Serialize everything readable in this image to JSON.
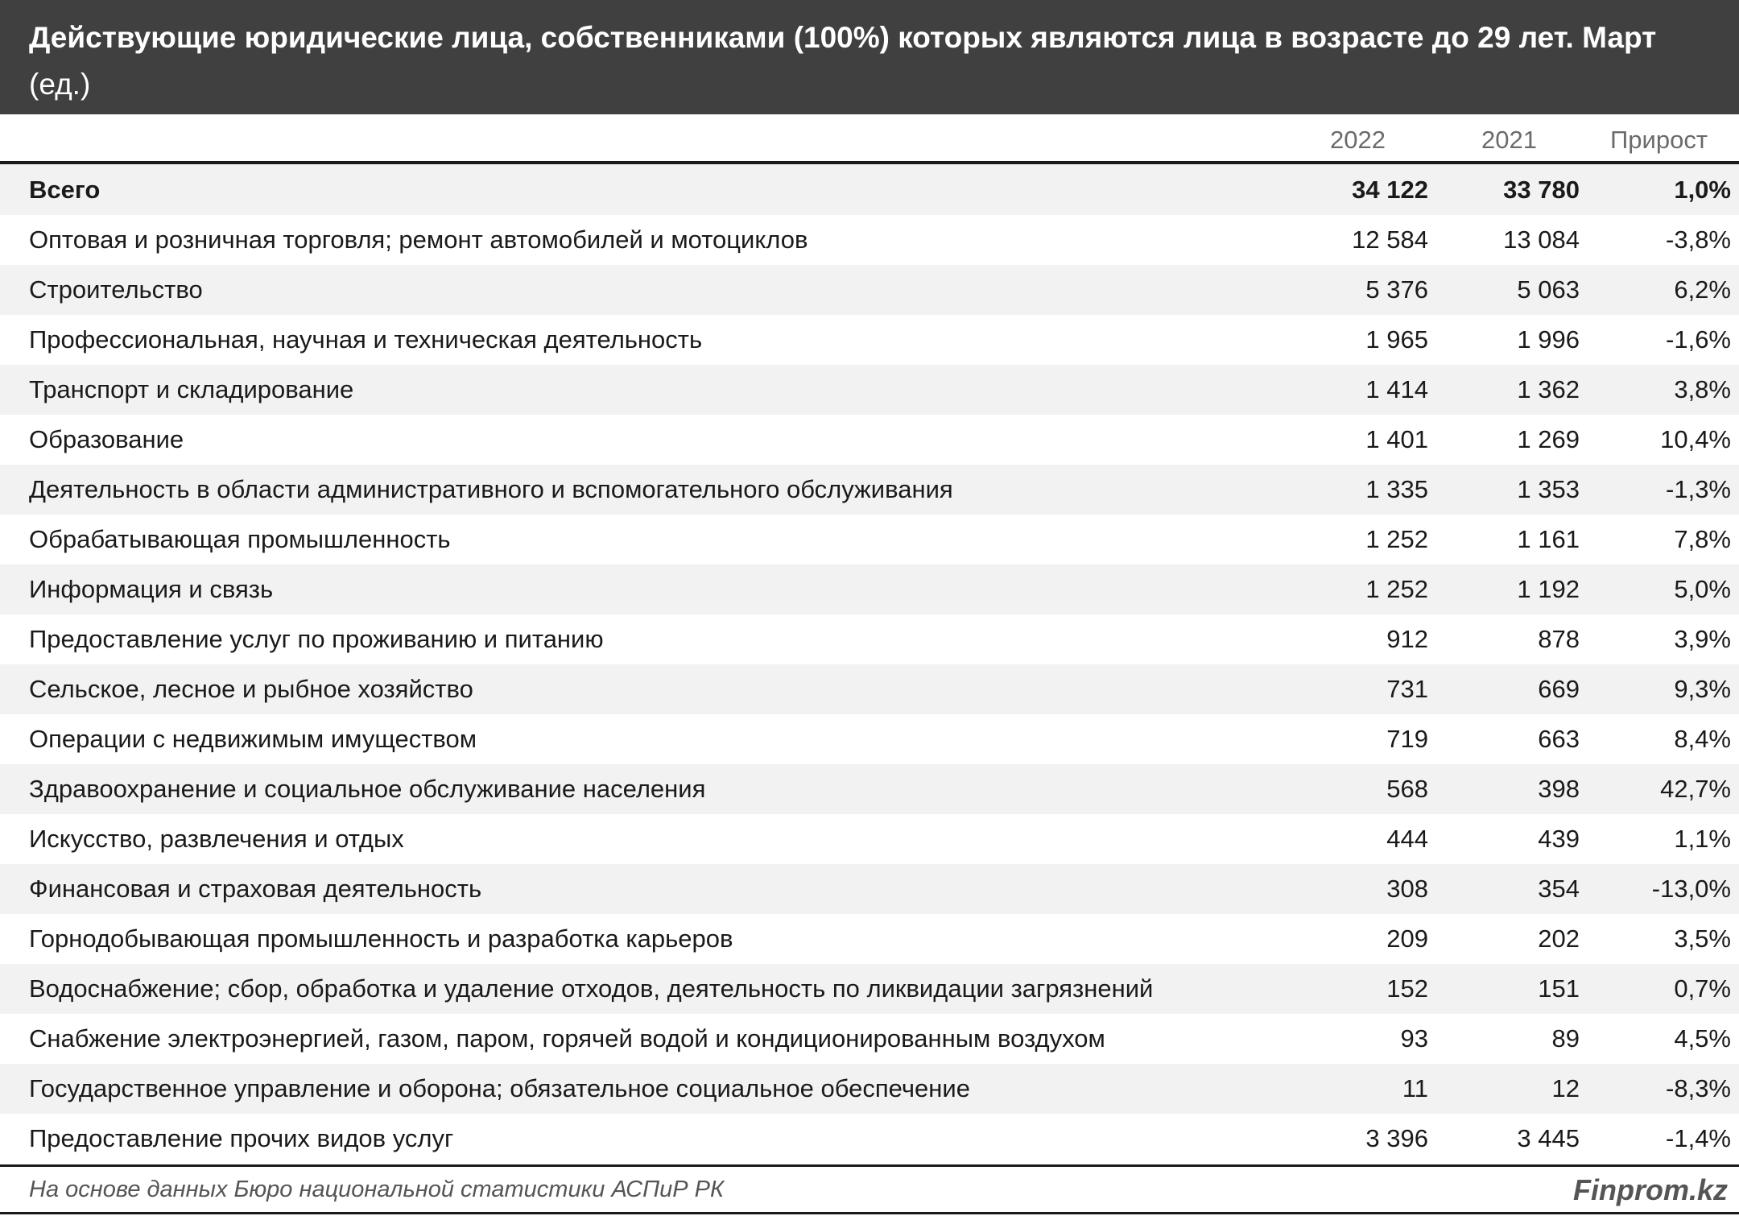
{
  "chart_data": {
    "type": "table",
    "title": "Действующие юридические лица, собственниками (100%) которых являются лица в возрасте до 29 лет. Март",
    "unit": "(ед.)",
    "columns": [
      "2022",
      "2021",
      "Прирост"
    ],
    "rows": [
      {
        "label": "Всего",
        "v2022": "34 122",
        "v2021": "33 780",
        "growth": "1,0%",
        "total": true
      },
      {
        "label": "Оптовая и розничная торговля; ремонт автомобилей и мотоциклов",
        "v2022": "12 584",
        "v2021": "13 084",
        "growth": "-3,8%"
      },
      {
        "label": "Строительство",
        "v2022": "5 376",
        "v2021": "5 063",
        "growth": "6,2%"
      },
      {
        "label": "Профессиональная, научная и техническая деятельность",
        "v2022": "1 965",
        "v2021": "1 996",
        "growth": "-1,6%"
      },
      {
        "label": "Транспорт и складирование",
        "v2022": "1 414",
        "v2021": "1 362",
        "growth": "3,8%"
      },
      {
        "label": "Образование",
        "v2022": "1 401",
        "v2021": "1 269",
        "growth": "10,4%"
      },
      {
        "label": "Деятельность в области административного и вспомогательного обслуживания",
        "v2022": "1 335",
        "v2021": "1 353",
        "growth": "-1,3%"
      },
      {
        "label": "Обрабатывающая промышленность",
        "v2022": "1 252",
        "v2021": "1 161",
        "growth": "7,8%"
      },
      {
        "label": "Информация и связь",
        "v2022": "1 252",
        "v2021": "1 192",
        "growth": "5,0%"
      },
      {
        "label": "Предоставление услуг по проживанию и питанию",
        "v2022": "912",
        "v2021": "878",
        "growth": "3,9%"
      },
      {
        "label": "Сельское, лесное и рыбное хозяйство",
        "v2022": "731",
        "v2021": "669",
        "growth": "9,3%"
      },
      {
        "label": "Операции с недвижимым имуществом",
        "v2022": "719",
        "v2021": "663",
        "growth": "8,4%"
      },
      {
        "label": "Здравоохранение и социальное обслуживание населения",
        "v2022": "568",
        "v2021": "398",
        "growth": "42,7%"
      },
      {
        "label": "Искусство, развлечения и отдых",
        "v2022": "444",
        "v2021": "439",
        "growth": "1,1%"
      },
      {
        "label": "Финансовая и страховая деятельность",
        "v2022": "308",
        "v2021": "354",
        "growth": "-13,0%"
      },
      {
        "label": "Горнодобывающая промышленность и разработка карьеров",
        "v2022": "209",
        "v2021": "202",
        "growth": "3,5%"
      },
      {
        "label": "Водоснабжение; сбор, обработка и удаление отходов, деятельность по ликвидации загрязнений",
        "v2022": "152",
        "v2021": "151",
        "growth": "0,7%"
      },
      {
        "label": "Снабжение электроэнергией, газом, паром, горячей водой и кондиционированным воздухом",
        "v2022": "93",
        "v2021": "89",
        "growth": "4,5%"
      },
      {
        "label": "Государственное управление и оборона; обязательное социальное обеспечение",
        "v2022": "11",
        "v2021": "12",
        "growth": "-8,3%"
      },
      {
        "label": "Предоставление прочих видов услуг",
        "v2022": "3 396",
        "v2021": "3 445",
        "growth": "-1,4%"
      }
    ],
    "source": "На основе данных Бюро национальной статистики АСПиР РК",
    "brand": "Finprom.kz"
  },
  "colors": {
    "title_bg": "#404040",
    "alt_row": "#f2f2f2",
    "header_text": "#6b6b6b"
  }
}
